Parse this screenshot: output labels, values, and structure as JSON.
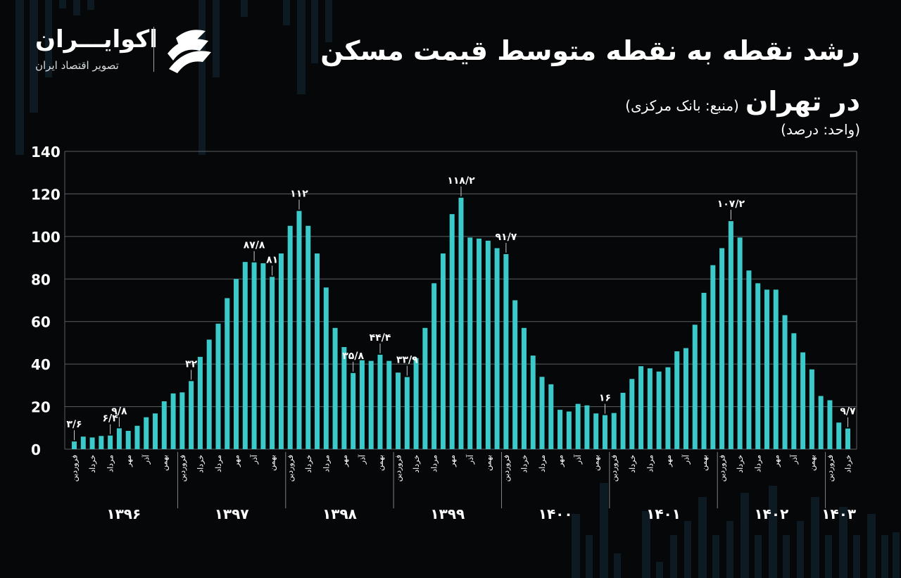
{
  "header": {
    "title": "رشد نقطه به نقطه متوسط قیمت مسکن",
    "subtitle": "در تهران",
    "source": "(منبع: بانک مرکزی)",
    "unit": "(واحد: درصد)"
  },
  "brand": {
    "name": "اکوایـــران",
    "tagline": "تصویر اقتصاد ایران",
    "logo_icon": "swoosh-logo-icon"
  },
  "colors": {
    "background": "#050708",
    "bar": "#3cc9c9",
    "grid": "#5a5f63",
    "text": "#ffffff"
  },
  "chart_data": {
    "type": "bar",
    "ylim": [
      0,
      140
    ],
    "y_ticks": [
      "0",
      "20",
      "40",
      "60",
      "80",
      "100",
      "120",
      "140"
    ],
    "grid": true,
    "x_tick_labels": [
      "فروردین",
      "خرداد",
      "مرداد",
      "مهر",
      "آذر",
      "بهمن"
    ],
    "years": [
      "۱۳۹۶",
      "۱۳۹۷",
      "۱۳۹۸",
      "۱۳۹۹",
      "۱۴۰۰",
      "۱۴۰۱",
      "۱۴۰۲",
      "۱۴۰۳"
    ],
    "series": [
      {
        "values": [
          3.6,
          5.9,
          5.5,
          6.2,
          6.4,
          9.8,
          8.6,
          11,
          15,
          16.8,
          22.5,
          26.2,
          26.7,
          32,
          43.4,
          51.5,
          59,
          71,
          80,
          88,
          87.8,
          87.4,
          81,
          92,
          105,
          112,
          105,
          92,
          76,
          57,
          48,
          35.8,
          41.8,
          41.5,
          44.4,
          41.5,
          36,
          33.9,
          42.8,
          57,
          78,
          92,
          110.5,
          118.2,
          99.5,
          99,
          98,
          94.5,
          91.7,
          70,
          57,
          44,
          34,
          30.5,
          18.5,
          17.7,
          21.3,
          20.6,
          16.8,
          16,
          17,
          26.5,
          33,
          39,
          38,
          36.5,
          38.5,
          46,
          47.5,
          58.5,
          73.5,
          86.5,
          94.5,
          107.2,
          99.5,
          84,
          78,
          75,
          75,
          63,
          54.5,
          45.5,
          37.5,
          25,
          23,
          12.5,
          9.7
        ]
      }
    ],
    "annotations": [
      {
        "index": 0,
        "label": "۳/۶"
      },
      {
        "index": 4,
        "label": "۶/۴"
      },
      {
        "index": 5,
        "label": "۹/۸"
      },
      {
        "index": 13,
        "label": "۳۲"
      },
      {
        "index": 20,
        "label": "۸۷/۸"
      },
      {
        "index": 22,
        "label": "۸۱"
      },
      {
        "index": 25,
        "label": "۱۱۲"
      },
      {
        "index": 31,
        "label": "۳۵/۸"
      },
      {
        "index": 34,
        "label": "۴۴/۴"
      },
      {
        "index": 37,
        "label": "۳۳/۹"
      },
      {
        "index": 43,
        "label": "۱۱۸/۲"
      },
      {
        "index": 48,
        "label": "۹۱/۷"
      },
      {
        "index": 59,
        "label": "۱۶"
      },
      {
        "index": 73,
        "label": "۱۰۷/۲"
      },
      {
        "index": 86,
        "label": "۹/۷"
      }
    ]
  }
}
